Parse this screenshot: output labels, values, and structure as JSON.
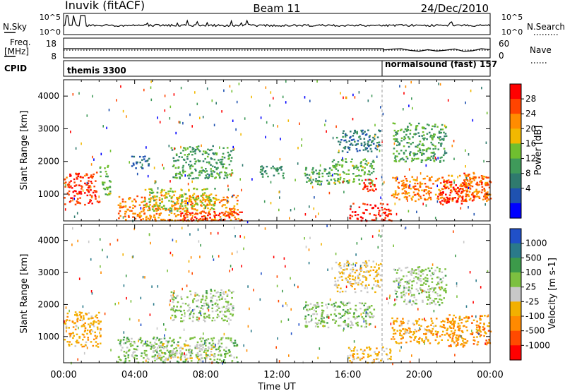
{
  "header": {
    "station": "Inuvik (fitACF)",
    "beam": "Beam 11",
    "date": "24/Dec/2010"
  },
  "summary_panels": {
    "nsky_label": "N.Sky",
    "nsky_ticks": [
      "10^5",
      "10^0"
    ],
    "nsearch_label": "N.Search",
    "nsearch_ticks": [
      "10^5",
      "10^0"
    ],
    "freq_label": "Freq.",
    "freq_unit": "[MHz]",
    "freq_ticks": [
      "18",
      "8"
    ],
    "nave_label": "Nave",
    "nave_ticks": [
      "60",
      "0"
    ],
    "cpid_label": "CPID",
    "cpid_segments": [
      {
        "name": "themis 3300",
        "start_hour": 0,
        "end_hour": 18
      },
      {
        "name": "normalsound (fast) 157",
        "start_hour": 18,
        "end_hour": 24
      }
    ]
  },
  "power_panel": {
    "ylabel": "Slant Range [km]",
    "colorbar_label": "Power [dB]",
    "colorbar_ticks": [
      "28",
      "24",
      "20",
      "16",
      "12",
      "8",
      "4"
    ],
    "colors": [
      "#ff0000",
      "#ff4400",
      "#ff8c00",
      "#f2b800",
      "#6fbf2f",
      "#3f9a5a",
      "#2f7a6e",
      "#1f52b0",
      "#0000ff"
    ]
  },
  "velocity_panel": {
    "ylabel": "Slant Range [km]",
    "colorbar_label": "Velocity [m s-1]",
    "colorbar_ticks": [
      "1000",
      "500",
      "100",
      "25",
      "-25",
      "-100",
      "-500",
      "-1000"
    ],
    "colors": [
      "#2050c8",
      "#2a7a8a",
      "#3c9a4a",
      "#7cc040",
      "#c8c8c8",
      "#f2b000",
      "#ff8a00",
      "#ff4a00",
      "#ff0000"
    ]
  },
  "xaxis": {
    "label": "Time UT",
    "ticks": [
      "00:00",
      "04:00",
      "08:00",
      "12:00",
      "16:00",
      "20:00",
      "00:00"
    ]
  },
  "chart_data": [
    {
      "type": "heatmap",
      "title": "Inuvik (fitACF)",
      "subtitle": "Beam 11",
      "xlabel": "Time UT",
      "ylabel": "Slant Range [km]",
      "colorbar_label": "Power [dB]",
      "xlim": [
        0,
        24
      ],
      "ylim": [
        180,
        4500
      ],
      "yticks": [
        1000,
        2000,
        3000,
        4000
      ],
      "clim": [
        0,
        30
      ],
      "blobs": [
        {
          "t0": 0.0,
          "t1": 2.0,
          "r0": 700,
          "r1": 1700,
          "value": 26
        },
        {
          "t0": 2.0,
          "t1": 2.6,
          "r0": 1000,
          "r1": 1900,
          "value": 14
        },
        {
          "t0": 3.0,
          "t1": 9.8,
          "r0": 200,
          "r1": 1000,
          "value": 22
        },
        {
          "t0": 4.5,
          "t1": 8.5,
          "r0": 500,
          "r1": 1200,
          "value": 16
        },
        {
          "t0": 6.5,
          "t1": 10.0,
          "r0": 200,
          "r1": 500,
          "value": 27
        },
        {
          "t0": 3.8,
          "t1": 4.8,
          "r0": 1800,
          "r1": 2200,
          "value": 6
        },
        {
          "t0": 6.0,
          "t1": 9.5,
          "r0": 1500,
          "r1": 2500,
          "value": 12
        },
        {
          "t0": 11.0,
          "t1": 12.5,
          "r0": 1500,
          "r1": 1900,
          "value": 10
        },
        {
          "t0": 13.5,
          "t1": 15.0,
          "r0": 1300,
          "r1": 1900,
          "value": 12
        },
        {
          "t0": 15.0,
          "t1": 17.5,
          "r0": 1300,
          "r1": 2100,
          "value": 14
        },
        {
          "t0": 16.8,
          "t1": 17.6,
          "r0": 1000,
          "r1": 1500,
          "value": 26
        },
        {
          "t0": 15.3,
          "t1": 17.8,
          "r0": 2300,
          "r1": 3000,
          "value": 8
        },
        {
          "t0": 16.0,
          "t1": 18.4,
          "r0": 200,
          "r1": 750,
          "value": 27
        },
        {
          "t0": 18.4,
          "t1": 23.8,
          "r0": 800,
          "r1": 1600,
          "value": 22
        },
        {
          "t0": 21.0,
          "t1": 22.5,
          "r0": 700,
          "r1": 1400,
          "value": 28
        },
        {
          "t0": 18.5,
          "t1": 21.5,
          "r0": 2000,
          "r1": 3200,
          "value": 12
        },
        {
          "t0": 22.5,
          "t1": 24.0,
          "r0": 800,
          "r1": 1700,
          "value": 24
        }
      ]
    },
    {
      "type": "heatmap",
      "xlabel": "Time UT",
      "ylabel": "Slant Range [km]",
      "colorbar_label": "Velocity [m s-1]",
      "xlim": [
        0,
        24
      ],
      "ylim": [
        180,
        4500
      ],
      "yticks": [
        1000,
        2000,
        3000,
        4000
      ],
      "clim": [
        -1000,
        1000
      ],
      "blobs": [
        {
          "t0": 0.0,
          "t1": 2.1,
          "r0": 700,
          "r1": 1800,
          "value": -300
        },
        {
          "t0": 3.0,
          "t1": 9.8,
          "r0": 200,
          "r1": 1000,
          "value": 200
        },
        {
          "t0": 5.0,
          "t1": 8.5,
          "r0": 300,
          "r1": 800,
          "value": 0
        },
        {
          "t0": 6.0,
          "t1": 9.5,
          "r0": 1500,
          "r1": 2500,
          "value": 150
        },
        {
          "t0": 13.5,
          "t1": 17.5,
          "r0": 1300,
          "r1": 2100,
          "value": 200
        },
        {
          "t0": 15.2,
          "t1": 17.8,
          "r0": 2400,
          "r1": 3400,
          "value": -150
        },
        {
          "t0": 16.0,
          "t1": 18.4,
          "r0": 200,
          "r1": 700,
          "value": -200
        },
        {
          "t0": 18.4,
          "t1": 22.0,
          "r0": 800,
          "r1": 1600,
          "value": -300
        },
        {
          "t0": 18.5,
          "t1": 21.5,
          "r0": 2000,
          "r1": 3200,
          "value": 150
        },
        {
          "t0": 21.5,
          "t1": 24.0,
          "r0": 700,
          "r1": 1700,
          "value": -400
        }
      ]
    }
  ]
}
